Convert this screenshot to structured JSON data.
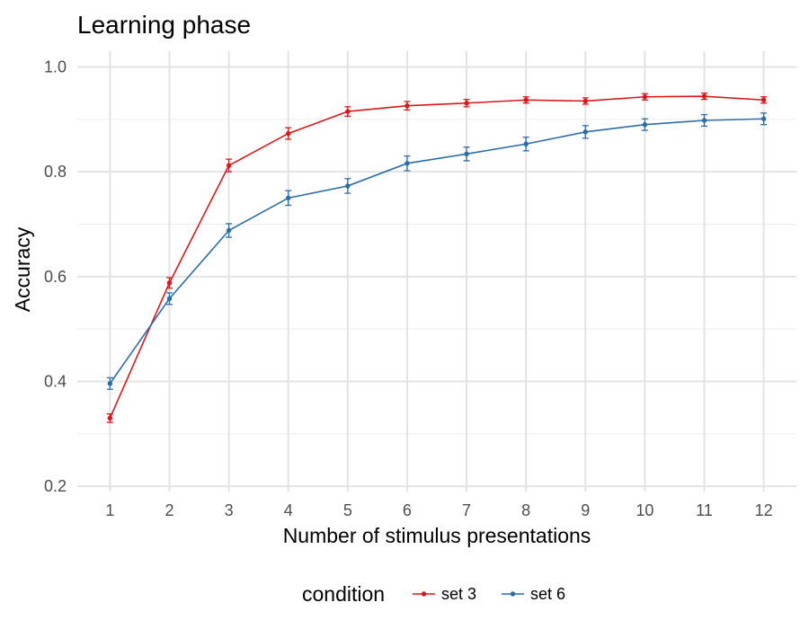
{
  "chart_data": {
    "type": "line",
    "title": "Learning phase",
    "xlabel": "Number of stimulus presentations",
    "ylabel": "Accuracy",
    "x": [
      1,
      2,
      3,
      4,
      5,
      6,
      7,
      8,
      9,
      10,
      11,
      12
    ],
    "xticks": [
      "1",
      "2",
      "3",
      "4",
      "5",
      "6",
      "7",
      "8",
      "9",
      "10",
      "11",
      "12"
    ],
    "yticks": [
      {
        "value": 0.2,
        "label": "0.2"
      },
      {
        "value": 0.4,
        "label": "0.4"
      },
      {
        "value": 0.6,
        "label": "0.6"
      },
      {
        "value": 0.8,
        "label": "0.8"
      },
      {
        "value": 1.0,
        "label": "1.0"
      }
    ],
    "ylim": [
      0.19,
      1.03
    ],
    "xlim": [
      0.45,
      12.55
    ],
    "grid": true,
    "legend_title": "condition",
    "legend_position": "bottom",
    "series": [
      {
        "name": "set 3",
        "color": "#d7191c",
        "values": [
          0.33,
          0.588,
          0.812,
          0.873,
          0.915,
          0.926,
          0.931,
          0.937,
          0.935,
          0.943,
          0.944,
          0.937
        ],
        "error": [
          0.008,
          0.01,
          0.012,
          0.011,
          0.009,
          0.008,
          0.007,
          0.006,
          0.006,
          0.006,
          0.006,
          0.006
        ]
      },
      {
        "name": "set 6",
        "color": "#2c6ca8",
        "values": [
          0.396,
          0.558,
          0.688,
          0.75,
          0.773,
          0.816,
          0.834,
          0.853,
          0.876,
          0.89,
          0.898,
          0.901
        ],
        "error": [
          0.011,
          0.011,
          0.013,
          0.014,
          0.014,
          0.014,
          0.013,
          0.013,
          0.012,
          0.011,
          0.011,
          0.011
        ]
      }
    ]
  }
}
